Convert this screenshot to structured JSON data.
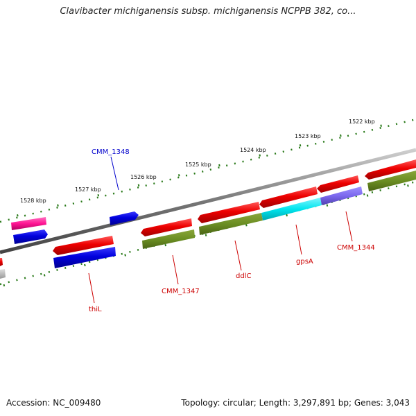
{
  "title": "Clavibacter michiganensis subsp. michiganensis NCPPB 382, co...",
  "footer": {
    "accession": "Accession: NC_009480",
    "info": "Topology: circular; Length: 3,297,891 bp; Genes: 3,043"
  },
  "kbp_labels": [
    "1528 kbp",
    "1527 kbp",
    "1526 kbp",
    "1525 kbp",
    "1524 kbp",
    "1523 kbp",
    "1522 kbp"
  ],
  "gene_labels": [
    {
      "text": "CMM_1348",
      "color": "#0000cc"
    },
    {
      "text": "thiL",
      "color": "#cc0000"
    },
    {
      "text": "CMM_1347",
      "color": "#cc0000"
    },
    {
      "text": "ddlC",
      "color": "#cc0000"
    },
    {
      "text": "gpsA",
      "color": "#cc0000"
    },
    {
      "text": "CMM_1344",
      "color": "#cc0000"
    }
  ],
  "colors": {
    "backbone": "#888888",
    "tick_dots": "#2a7a1a",
    "cds_red": "#ee0000",
    "cds_blue": "#0000dd",
    "cds_olive": "#6b8e23",
    "cds_cyan": "#00e5ee",
    "cds_purple": "#7b68ee",
    "cds_pink": "#ff1493",
    "cds_gray": "#bbbbbb"
  }
}
